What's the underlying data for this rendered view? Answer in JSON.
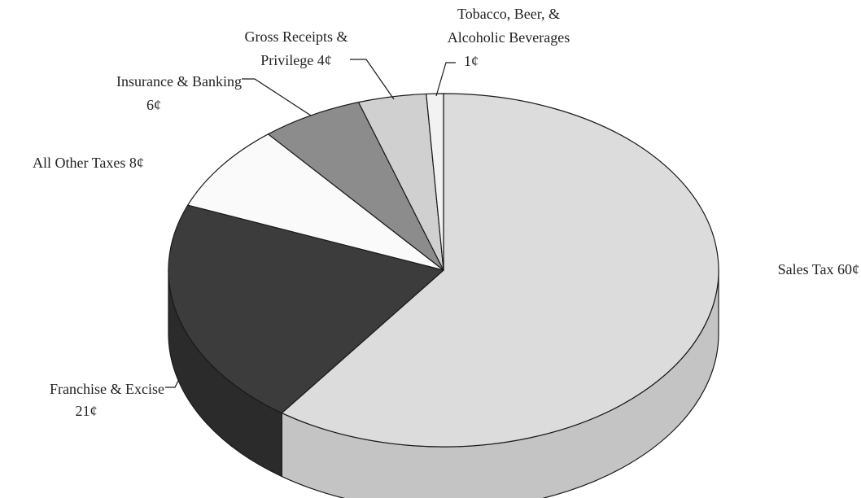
{
  "chart_data": {
    "type": "pie",
    "style": "3d",
    "title": "",
    "unit": "¢",
    "slices": [
      {
        "label_lines": [
          "Sales Tax  60¢"
        ],
        "label": "Sales Tax",
        "value": 60,
        "value_text": "60¢",
        "color": "#dcdcdc",
        "side_color": "#c4c4c4"
      },
      {
        "label_lines": [
          "Franchise & Excise",
          "21¢"
        ],
        "label": "Franchise & Excise",
        "value": 21,
        "value_text": "21¢",
        "color": "#3c3c3c",
        "side_color": "#2b2b2b"
      },
      {
        "label_lines": [
          "All Other Taxes  8¢"
        ],
        "label": "All Other Taxes",
        "value": 8,
        "value_text": "8¢",
        "color": "#fafafa",
        "side_color": "#e6e6e6"
      },
      {
        "label_lines": [
          "Insurance & Banking",
          "6¢"
        ],
        "label": "Insurance & Banking",
        "value": 6,
        "value_text": "6¢",
        "color": "#8c8c8c",
        "side_color": "#767676"
      },
      {
        "label_lines": [
          "Gross Receipts &",
          "Privilege  4¢"
        ],
        "label": "Gross Receipts & Privilege",
        "value": 4,
        "value_text": "4¢",
        "color": "#d0d0d0",
        "side_color": "#b8b8b8"
      },
      {
        "label_lines": [
          "Tobacco, Beer, &",
          "Alcoholic Beverages",
          "1¢"
        ],
        "label": "Tobacco, Beer, & Alcoholic Beverages",
        "value": 1,
        "value_text": "1¢",
        "color": "#f2f2f2",
        "side_color": "#dedede"
      }
    ]
  }
}
